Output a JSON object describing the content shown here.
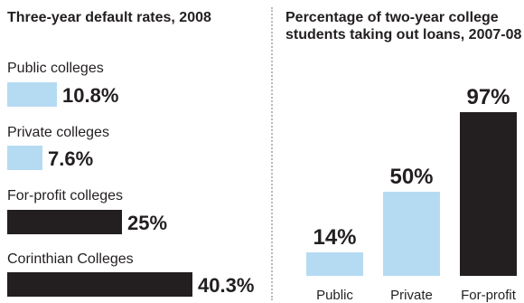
{
  "colors": {
    "public": "#b5dbf3",
    "private": "#b5dbf3",
    "for_profit": "#231f20",
    "text": "#231f20",
    "divider": "#b9b9b9"
  },
  "chart_data": [
    {
      "type": "bar",
      "orientation": "horizontal",
      "title": "Three-year default rates, 2008",
      "categories": [
        "Public colleges",
        "Private colleges",
        "For-profit colleges",
        "Corinthian Colleges"
      ],
      "values": [
        10.8,
        7.6,
        25,
        40.3
      ],
      "value_labels": [
        "10.8%",
        "7.6%",
        "25%",
        "40.3%"
      ],
      "unit": "%",
      "bar_colors": [
        "#b5dbf3",
        "#b5dbf3",
        "#231f20",
        "#231f20"
      ],
      "xlim": [
        0,
        40.3
      ],
      "grid": false
    },
    {
      "type": "bar",
      "orientation": "vertical",
      "title": "Percentage of two-year college students taking out loans, 2007-08",
      "categories": [
        "Public",
        "Private",
        "For-profit"
      ],
      "values": [
        14,
        50,
        97
      ],
      "value_labels": [
        "14%",
        "50%",
        "97%"
      ],
      "unit": "%",
      "bar_colors": [
        "#b5dbf3",
        "#b5dbf3",
        "#231f20"
      ],
      "ylim": [
        0,
        97
      ],
      "grid": false
    }
  ]
}
